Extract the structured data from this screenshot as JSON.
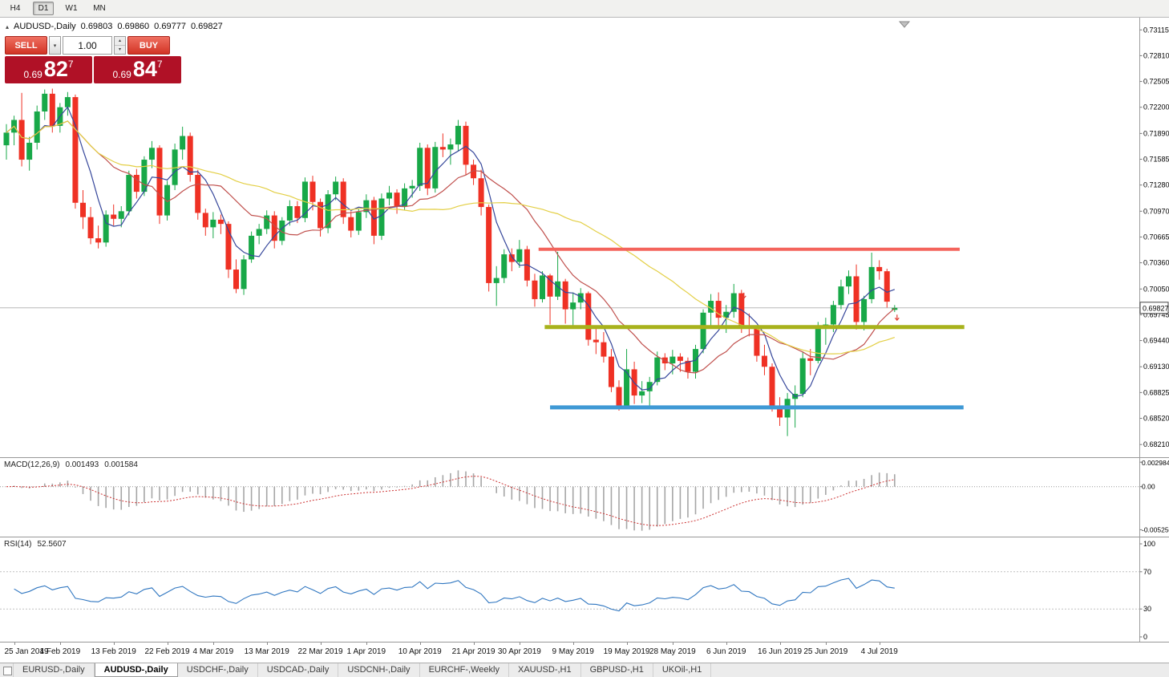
{
  "toolbar": {
    "timeframes": [
      {
        "label": "H4",
        "active": false
      },
      {
        "label": "D1",
        "active": true
      },
      {
        "label": "W1",
        "active": false
      },
      {
        "label": "MN",
        "active": false
      }
    ]
  },
  "chart_header": {
    "collapse_icon": "▴",
    "title": "AUDUSD-,Daily",
    "open": "0.69803",
    "high": "0.69860",
    "low": "0.69777",
    "close": "0.69827"
  },
  "trade_panel": {
    "sell_label": "SELL",
    "buy_label": "BUY",
    "volume": "1.00",
    "spinner_up_icon": "▴",
    "spinner_down_icon": "▾",
    "sell_price": {
      "prefix": "0.69",
      "big": "82",
      "sup": "7"
    },
    "buy_price": {
      "prefix": "0.69",
      "big": "84",
      "sup": "7"
    },
    "box_color": "#b01126",
    "button_color": "#d23425"
  },
  "chart_data": {
    "type": "candlestick",
    "symbol": "AUDUSD-",
    "timeframe": "Daily",
    "last_price": 0.69827,
    "last_price_label": "0.69827",
    "y_range": [
      0.6806,
      0.7326
    ],
    "price_axis_ticks": [
      "0.73115",
      "0.72810",
      "0.72505",
      "0.72200",
      "0.71890",
      "0.71585",
      "0.71280",
      "0.70970",
      "0.70665",
      "0.70360",
      "0.70050",
      "0.69745",
      "0.69440",
      "0.69130",
      "0.68825",
      "0.68520",
      "0.68210"
    ],
    "date_labels": [
      "25 Jan 2019",
      "4 Feb 2019",
      "13 Feb 2019",
      "22 Feb 2019",
      "4 Mar 2019",
      "13 Mar 2019",
      "22 Mar 2019",
      "1 Apr 2019",
      "10 Apr 2019",
      "21 Apr 2019",
      "30 Apr 2019",
      "9 May 2019",
      "19 May 2019",
      "28 May 2019",
      "6 Jun 2019",
      "16 Jun 2019",
      "25 Jun 2019",
      "4 Jul 2019"
    ],
    "date_label_bars": [
      1,
      7,
      14,
      21,
      27,
      34,
      41,
      47,
      54,
      61,
      67,
      74,
      81,
      87,
      94,
      101,
      107,
      114
    ],
    "bull_color": "#18a848",
    "bear_color": "#ef3124",
    "candles": [
      [
        0.7175,
        0.72,
        0.7158,
        0.719
      ],
      [
        0.719,
        0.721,
        0.7175,
        0.7205
      ],
      [
        0.7205,
        0.7237,
        0.715,
        0.7158
      ],
      [
        0.7158,
        0.7185,
        0.7145,
        0.7178
      ],
      [
        0.7178,
        0.7222,
        0.717,
        0.7215
      ],
      [
        0.7215,
        0.7241,
        0.7205,
        0.7236
      ],
      [
        0.7236,
        0.7242,
        0.719,
        0.7198
      ],
      [
        0.7198,
        0.7225,
        0.719,
        0.722
      ],
      [
        0.722,
        0.7238,
        0.721,
        0.7232
      ],
      [
        0.7232,
        0.7235,
        0.71,
        0.7107
      ],
      [
        0.7107,
        0.7122,
        0.7076,
        0.709
      ],
      [
        0.709,
        0.7102,
        0.7058,
        0.7065
      ],
      [
        0.7065,
        0.708,
        0.7053,
        0.706
      ],
      [
        0.706,
        0.7098,
        0.7055,
        0.7093
      ],
      [
        0.7093,
        0.7105,
        0.708,
        0.7088
      ],
      [
        0.7088,
        0.7103,
        0.7078,
        0.7097
      ],
      [
        0.7097,
        0.7145,
        0.7092,
        0.714
      ],
      [
        0.714,
        0.7147,
        0.7112,
        0.712
      ],
      [
        0.712,
        0.7162,
        0.7115,
        0.7158
      ],
      [
        0.7158,
        0.718,
        0.7148,
        0.7172
      ],
      [
        0.7172,
        0.7175,
        0.7082,
        0.7092
      ],
      [
        0.7092,
        0.7133,
        0.7086,
        0.7128
      ],
      [
        0.7128,
        0.7177,
        0.7122,
        0.717
      ],
      [
        0.717,
        0.7197,
        0.7158,
        0.7186
      ],
      [
        0.7186,
        0.719,
        0.7132,
        0.714
      ],
      [
        0.714,
        0.7146,
        0.7087,
        0.7095
      ],
      [
        0.7095,
        0.71,
        0.7068,
        0.7078
      ],
      [
        0.7078,
        0.7096,
        0.7065,
        0.7087
      ],
      [
        0.7087,
        0.7093,
        0.707,
        0.7082
      ],
      [
        0.7082,
        0.7085,
        0.7018,
        0.7028
      ],
      [
        0.7028,
        0.704,
        0.7,
        0.7005
      ],
      [
        0.7005,
        0.7045,
        0.6998,
        0.704
      ],
      [
        0.704,
        0.7073,
        0.7036,
        0.7068
      ],
      [
        0.7068,
        0.7082,
        0.7058,
        0.7076
      ],
      [
        0.7076,
        0.7098,
        0.707,
        0.7092
      ],
      [
        0.7092,
        0.7097,
        0.7053,
        0.7062
      ],
      [
        0.7062,
        0.709,
        0.7057,
        0.7086
      ],
      [
        0.7086,
        0.711,
        0.708,
        0.7103
      ],
      [
        0.7103,
        0.7109,
        0.7083,
        0.7089
      ],
      [
        0.7089,
        0.7137,
        0.7084,
        0.7132
      ],
      [
        0.7132,
        0.7139,
        0.7098,
        0.7108
      ],
      [
        0.7108,
        0.7112,
        0.7067,
        0.7077
      ],
      [
        0.7077,
        0.7122,
        0.7071,
        0.7117
      ],
      [
        0.7117,
        0.7138,
        0.711,
        0.7132
      ],
      [
        0.7132,
        0.7136,
        0.7082,
        0.709
      ],
      [
        0.709,
        0.7097,
        0.7066,
        0.7074
      ],
      [
        0.7074,
        0.71,
        0.7069,
        0.7096
      ],
      [
        0.7096,
        0.7117,
        0.7089,
        0.711
      ],
      [
        0.711,
        0.7114,
        0.7058,
        0.7068
      ],
      [
        0.7068,
        0.7118,
        0.7063,
        0.7112
      ],
      [
        0.7112,
        0.7127,
        0.7104,
        0.7119
      ],
      [
        0.7119,
        0.7123,
        0.7094,
        0.7103
      ],
      [
        0.7103,
        0.713,
        0.7098,
        0.7124
      ],
      [
        0.7124,
        0.7134,
        0.7113,
        0.7127
      ],
      [
        0.7127,
        0.7178,
        0.7121,
        0.7172
      ],
      [
        0.7172,
        0.7176,
        0.7116,
        0.7124
      ],
      [
        0.7124,
        0.7179,
        0.7119,
        0.7173
      ],
      [
        0.7173,
        0.7189,
        0.7161,
        0.717
      ],
      [
        0.717,
        0.7183,
        0.7152,
        0.7176
      ],
      [
        0.7176,
        0.7205,
        0.7168,
        0.7198
      ],
      [
        0.7198,
        0.7203,
        0.714,
        0.7152
      ],
      [
        0.7152,
        0.7158,
        0.7128,
        0.7136
      ],
      [
        0.7136,
        0.7146,
        0.7092,
        0.7102
      ],
      [
        0.7102,
        0.7105,
        0.7002,
        0.7012
      ],
      [
        0.7012,
        0.7032,
        0.6985,
        0.7018
      ],
      [
        0.7018,
        0.7052,
        0.7012,
        0.7046
      ],
      [
        0.7046,
        0.7053,
        0.7026,
        0.7037
      ],
      [
        0.7037,
        0.7063,
        0.703,
        0.7052
      ],
      [
        0.7052,
        0.7056,
        0.7008,
        0.7015
      ],
      [
        0.7015,
        0.7023,
        0.6984,
        0.6993
      ],
      [
        0.6993,
        0.7026,
        0.6989,
        0.7021
      ],
      [
        0.7021,
        0.7023,
        0.6963,
        0.6996
      ],
      [
        0.6996,
        0.7049,
        0.6992,
        0.7014
      ],
      [
        0.7014,
        0.7017,
        0.6964,
        0.6981
      ],
      [
        0.6981,
        0.7001,
        0.6959,
        0.6989
      ],
      [
        0.6989,
        0.7006,
        0.6981,
        0.7
      ],
      [
        0.7,
        0.7002,
        0.6938,
        0.6945
      ],
      [
        0.6945,
        0.6961,
        0.6928,
        0.6942
      ],
      [
        0.6942,
        0.6954,
        0.6918,
        0.6925
      ],
      [
        0.6925,
        0.6934,
        0.6883,
        0.6889
      ],
      [
        0.6889,
        0.6897,
        0.6861,
        0.6866
      ],
      [
        0.6866,
        0.6934,
        0.6864,
        0.691
      ],
      [
        0.691,
        0.6919,
        0.6869,
        0.6879
      ],
      [
        0.6879,
        0.6896,
        0.687,
        0.6884
      ],
      [
        0.6884,
        0.6901,
        0.6866,
        0.6895
      ],
      [
        0.6895,
        0.6931,
        0.6891,
        0.6924
      ],
      [
        0.6924,
        0.6929,
        0.6909,
        0.6917
      ],
      [
        0.6917,
        0.6933,
        0.6904,
        0.6925
      ],
      [
        0.6925,
        0.6929,
        0.6907,
        0.692
      ],
      [
        0.692,
        0.6924,
        0.6899,
        0.6907
      ],
      [
        0.6907,
        0.6939,
        0.6899,
        0.6934
      ],
      [
        0.6934,
        0.6981,
        0.6929,
        0.6977
      ],
      [
        0.6977,
        0.6999,
        0.6958,
        0.6991
      ],
      [
        0.6991,
        0.7001,
        0.6961,
        0.6971
      ],
      [
        0.6971,
        0.6986,
        0.6953,
        0.6978
      ],
      [
        0.6978,
        0.7011,
        0.6971,
        0.7
      ],
      [
        0.7,
        0.7004,
        0.6953,
        0.6961
      ],
      [
        0.6961,
        0.6976,
        0.6949,
        0.6958
      ],
      [
        0.6958,
        0.6962,
        0.6919,
        0.6926
      ],
      [
        0.6926,
        0.6939,
        0.6903,
        0.6913
      ],
      [
        0.6913,
        0.6917,
        0.686,
        0.6867
      ],
      [
        0.6867,
        0.6877,
        0.6843,
        0.6853
      ],
      [
        0.6853,
        0.6882,
        0.6831,
        0.6875
      ],
      [
        0.6875,
        0.6891,
        0.6841,
        0.6881
      ],
      [
        0.6881,
        0.6931,
        0.6877,
        0.6923
      ],
      [
        0.6923,
        0.6934,
        0.6903,
        0.692
      ],
      [
        0.692,
        0.6966,
        0.6917,
        0.6959
      ],
      [
        0.6959,
        0.6971,
        0.6939,
        0.6963
      ],
      [
        0.6963,
        0.6991,
        0.6954,
        0.6986
      ],
      [
        0.6986,
        0.7016,
        0.6981,
        0.7008
      ],
      [
        0.7008,
        0.7027,
        0.6999,
        0.702
      ],
      [
        0.702,
        0.7034,
        0.6957,
        0.6966
      ],
      [
        0.6966,
        0.6997,
        0.6956,
        0.6993
      ],
      [
        0.6993,
        0.7048,
        0.6988,
        0.7031
      ],
      [
        0.7031,
        0.7039,
        0.7016,
        0.7026
      ],
      [
        0.7026,
        0.7029,
        0.6983,
        0.699
      ],
      [
        0.69803,
        0.6986,
        0.69777,
        0.69827
      ]
    ],
    "moving_averages": [
      {
        "name": "ma-fast-line",
        "period": 5,
        "color": "#36479b"
      },
      {
        "name": "ma-mid-line",
        "period": 13,
        "color": "#c0504d"
      },
      {
        "name": "ma-slow-line",
        "period": 34,
        "color": "#e3cf45"
      }
    ],
    "hlines": [
      {
        "name": "resistance-line",
        "price": 0.7052,
        "color": "#f4645c",
        "width": 4,
        "from_bar": 69.5,
        "to_bar": 124.5
      },
      {
        "name": "pivot-line",
        "price": 0.696,
        "color": "#a8b21c",
        "width": 5,
        "from_bar": 70.3,
        "to_bar": 125.1
      },
      {
        "name": "support-line",
        "price": 0.6865,
        "color": "#3f99d5",
        "width": 5,
        "from_bar": 71,
        "to_bar": 125
      }
    ],
    "trade_arrows": [
      {
        "bar": 96,
        "price": 0.6995
      },
      {
        "bar": 116,
        "price": 0.6969
      }
    ],
    "indicators": {
      "macd": {
        "label": "MACD(12,26,9)",
        "value_main": "0.001493",
        "value_signal": "0.001584",
        "fast": 12,
        "slow": 26,
        "signal": 9,
        "y_range": [
          -0.0056,
          0.0031
        ],
        "axis_ticks": [
          {
            "label": "0.002984",
            "value": 0.002984
          },
          {
            "label": "0.00",
            "value": 0
          },
          {
            "label": "-0.005250",
            "value": -0.00525
          }
        ],
        "histogram_color": "#a6a6a6",
        "signal_color": "#cc3333"
      },
      "rsi": {
        "label": "RSI(14)",
        "period": 14,
        "value": "52.5607",
        "axis_ticks": [
          {
            "label": "100",
            "value": 100
          },
          {
            "label": "70",
            "value": 70
          },
          {
            "label": "30",
            "value": 30
          },
          {
            "label": "0",
            "value": 0
          }
        ],
        "levels": [
          70,
          30
        ],
        "line_color": "#2f76c0"
      }
    }
  },
  "tab_bar": {
    "tabs": [
      {
        "label": "EURUSD-,Daily",
        "active": false
      },
      {
        "label": "AUDUSD-,Daily",
        "active": true
      },
      {
        "label": "USDCHF-,Daily",
        "active": false
      },
      {
        "label": "USDCAD-,Daily",
        "active": false
      },
      {
        "label": "USDCNH-,Daily",
        "active": false
      },
      {
        "label": "EURCHF-,Weekly",
        "active": false
      },
      {
        "label": "XAUUSD-,H1",
        "active": false
      },
      {
        "label": "GBPUSD-,H1",
        "active": false
      },
      {
        "label": "UKOil-,H1",
        "active": false
      }
    ]
  }
}
